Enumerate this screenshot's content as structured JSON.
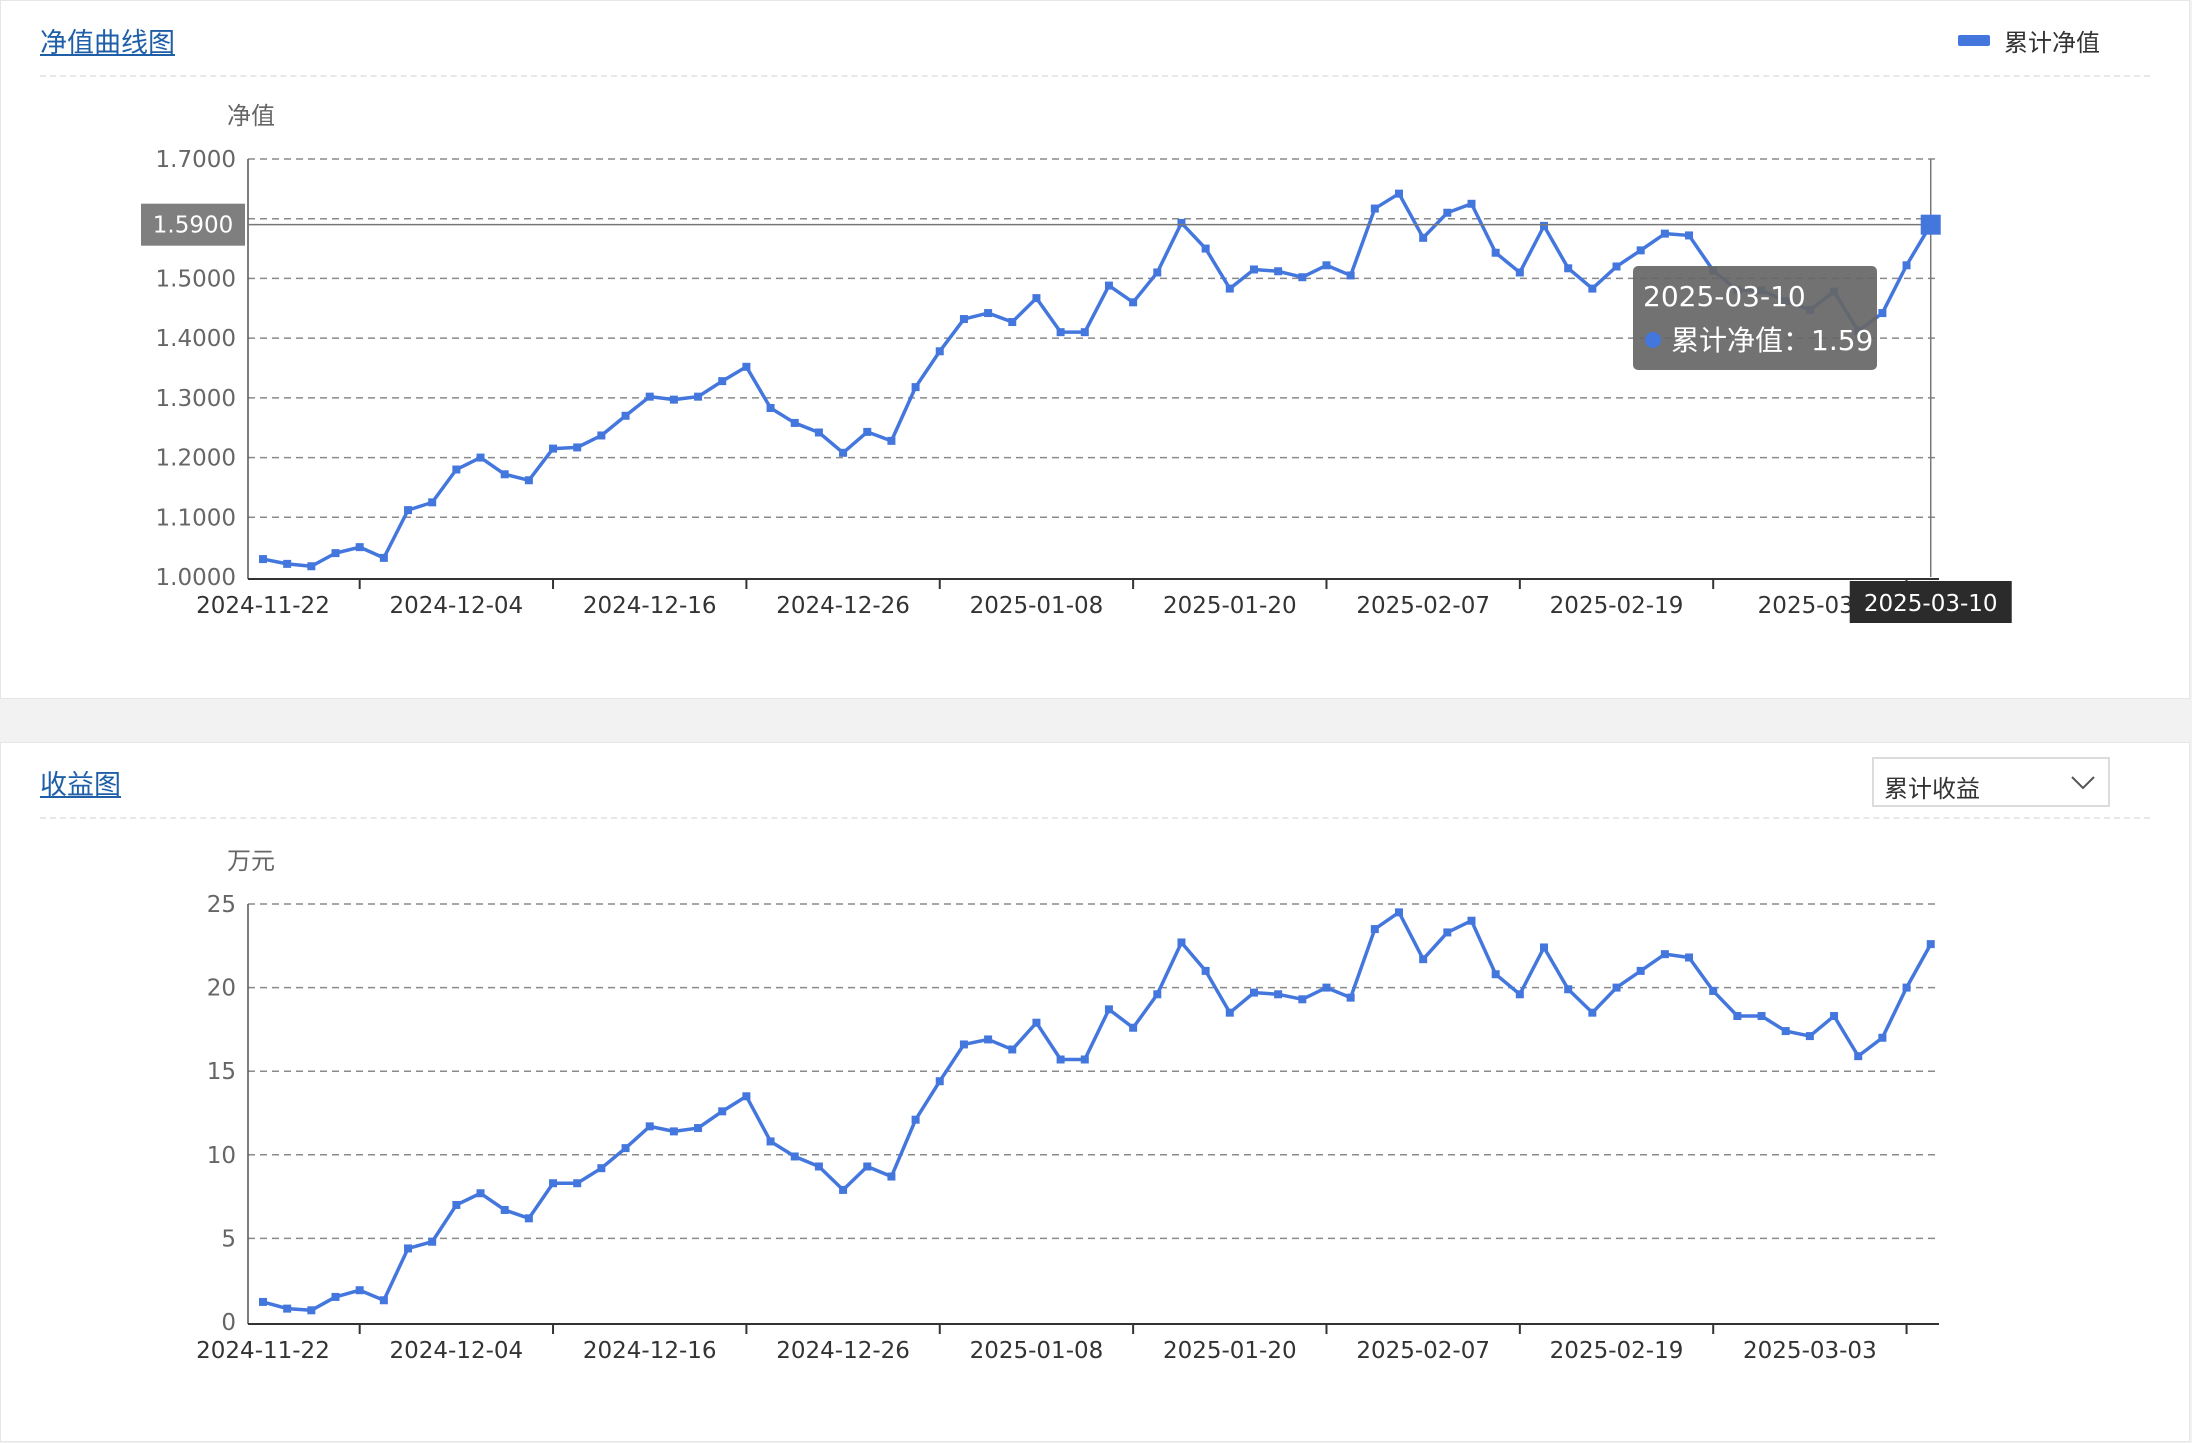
{
  "colors": {
    "series": "#4477dd",
    "tooltip_bg": "#666666",
    "axis_pointer_label": "#7f7f7f",
    "x_pointer_label": "#2b2b2b"
  },
  "nav_panel": {
    "title": "净值曲线图",
    "legend_label": "累计净值",
    "tooltip": {
      "date": "2025-03-10",
      "series": "累计净值",
      "sep": "：",
      "value": "1.59"
    },
    "y_pointer_label": "1.5900",
    "x_pointer_label": "2025-03-10"
  },
  "income_panel": {
    "title": "收益图",
    "select_value": "累计收益",
    "select_icon": "chevron-down-icon"
  },
  "chart_data": [
    {
      "type": "line",
      "ylabel": "净值",
      "ylim": [
        1.0,
        1.7
      ],
      "y_ticks": [
        "1.0000",
        "1.1000",
        "1.2000",
        "1.3000",
        "1.4000",
        "1.5000",
        "1.6000",
        "1.7000"
      ],
      "x_tick_labels": [
        "2024-11-22",
        "2024-12-04",
        "2024-12-16",
        "2024-12-26",
        "2025-01-08",
        "2025-01-20",
        "2025-02-07",
        "2025-02-19",
        "2025-03-"
      ],
      "x_tick_label_index": [
        0,
        8,
        16,
        24,
        32,
        40,
        48,
        56,
        64
      ],
      "grid": true,
      "legend": "top-right",
      "series": [
        {
          "name": "累计净值",
          "values": [
            1.03,
            1.022,
            1.018,
            1.04,
            1.05,
            1.032,
            1.112,
            1.125,
            1.18,
            1.2,
            1.172,
            1.162,
            1.215,
            1.217,
            1.237,
            1.27,
            1.302,
            1.297,
            1.302,
            1.328,
            1.352,
            1.283,
            1.258,
            1.242,
            1.208,
            1.243,
            1.228,
            1.318,
            1.378,
            1.432,
            1.442,
            1.427,
            1.467,
            1.41,
            1.41,
            1.488,
            1.46,
            1.51,
            1.593,
            1.55,
            1.483,
            1.515,
            1.512,
            1.502,
            1.522,
            1.505,
            1.617,
            1.642,
            1.568,
            1.61,
            1.625,
            1.543,
            1.51,
            1.588,
            1.517,
            1.483,
            1.52,
            1.547,
            1.575,
            1.572,
            1.513,
            1.48,
            1.48,
            1.462,
            1.447,
            1.478,
            1.412,
            1.442,
            1.522,
            1.59
          ]
        }
      ]
    },
    {
      "type": "line",
      "ylabel": "万元",
      "ylim": [
        0,
        25
      ],
      "y_ticks": [
        "0",
        "5",
        "10",
        "15",
        "20",
        "25"
      ],
      "x_tick_labels": [
        "2024-11-22",
        "2024-12-04",
        "2024-12-16",
        "2024-12-26",
        "2025-01-08",
        "2025-01-20",
        "2025-02-07",
        "2025-02-19",
        "2025-03-03"
      ],
      "x_tick_label_index": [
        0,
        8,
        16,
        24,
        32,
        40,
        48,
        56,
        64
      ],
      "grid": true,
      "series": [
        {
          "values": [
            1.2,
            0.8,
            0.7,
            1.5,
            1.9,
            1.3,
            4.4,
            4.8,
            7.0,
            7.7,
            6.7,
            6.2,
            8.3,
            8.3,
            9.2,
            10.4,
            11.7,
            11.4,
            11.6,
            12.6,
            13.5,
            10.8,
            9.9,
            9.3,
            7.9,
            9.3,
            8.7,
            12.1,
            14.4,
            16.6,
            16.9,
            16.3,
            17.9,
            15.7,
            15.7,
            18.7,
            17.6,
            19.6,
            22.7,
            21.0,
            18.5,
            19.7,
            19.6,
            19.3,
            20.0,
            19.4,
            23.5,
            24.5,
            21.7,
            23.3,
            24.0,
            20.8,
            19.6,
            22.4,
            19.9,
            18.5,
            20.0,
            21.0,
            22.0,
            21.8,
            19.8,
            18.3,
            18.3,
            17.4,
            17.1,
            18.3,
            15.9,
            17.0,
            20.0,
            22.6
          ]
        }
      ]
    }
  ]
}
